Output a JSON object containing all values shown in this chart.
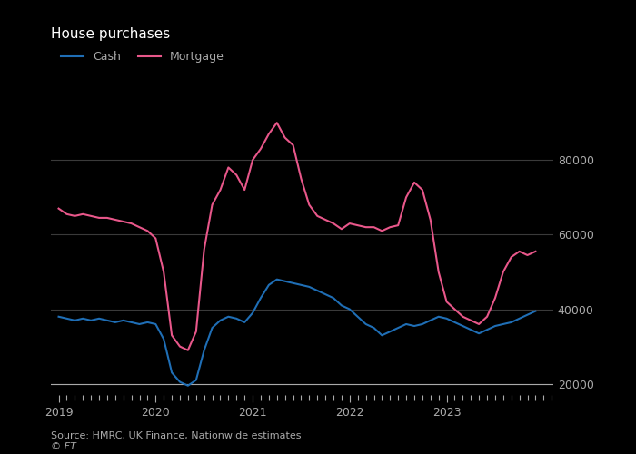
{
  "title": "House purchases",
  "cash_color": "#1f6eb5",
  "mortgage_color": "#e8578a",
  "background_color": "#000000",
  "plot_bg_color": "#000000",
  "text_color": "#aaaaaa",
  "title_color": "#ffffff",
  "grid_color": "#3a3a3a",
  "ylim": [
    17000,
    101000
  ],
  "yticks": [
    20000,
    40000,
    60000,
    80000
  ],
  "xlim": [
    2018.92,
    2024.1
  ],
  "xticks": [
    2019,
    2020,
    2021,
    2022,
    2023
  ],
  "source_text": "Source: HMRC, UK Finance, Nationwide estimates",
  "ft_text": "© FT",
  "cash_data": [
    [
      2019.0,
      38000
    ],
    [
      2019.083,
      37500
    ],
    [
      2019.167,
      37000
    ],
    [
      2019.25,
      37500
    ],
    [
      2019.333,
      37000
    ],
    [
      2019.417,
      37500
    ],
    [
      2019.5,
      37000
    ],
    [
      2019.583,
      36500
    ],
    [
      2019.667,
      37000
    ],
    [
      2019.75,
      36500
    ],
    [
      2019.833,
      36000
    ],
    [
      2019.917,
      36500
    ],
    [
      2020.0,
      36000
    ],
    [
      2020.083,
      32000
    ],
    [
      2020.167,
      23000
    ],
    [
      2020.25,
      20500
    ],
    [
      2020.333,
      19500
    ],
    [
      2020.417,
      21000
    ],
    [
      2020.5,
      29000
    ],
    [
      2020.583,
      35000
    ],
    [
      2020.667,
      37000
    ],
    [
      2020.75,
      38000
    ],
    [
      2020.833,
      37500
    ],
    [
      2020.917,
      36500
    ],
    [
      2021.0,
      39000
    ],
    [
      2021.083,
      43000
    ],
    [
      2021.167,
      46500
    ],
    [
      2021.25,
      48000
    ],
    [
      2021.333,
      47500
    ],
    [
      2021.417,
      47000
    ],
    [
      2021.5,
      46500
    ],
    [
      2021.583,
      46000
    ],
    [
      2021.667,
      45000
    ],
    [
      2021.75,
      44000
    ],
    [
      2021.833,
      43000
    ],
    [
      2021.917,
      41000
    ],
    [
      2022.0,
      40000
    ],
    [
      2022.083,
      38000
    ],
    [
      2022.167,
      36000
    ],
    [
      2022.25,
      35000
    ],
    [
      2022.333,
      33000
    ],
    [
      2022.417,
      34000
    ],
    [
      2022.5,
      35000
    ],
    [
      2022.583,
      36000
    ],
    [
      2022.667,
      35500
    ],
    [
      2022.75,
      36000
    ],
    [
      2022.833,
      37000
    ],
    [
      2022.917,
      38000
    ],
    [
      2023.0,
      37500
    ],
    [
      2023.083,
      36500
    ],
    [
      2023.167,
      35500
    ],
    [
      2023.25,
      34500
    ],
    [
      2023.333,
      33500
    ],
    [
      2023.417,
      34500
    ],
    [
      2023.5,
      35500
    ],
    [
      2023.583,
      36000
    ],
    [
      2023.667,
      36500
    ],
    [
      2023.75,
      37500
    ],
    [
      2023.833,
      38500
    ],
    [
      2023.917,
      39500
    ]
  ],
  "mortgage_data": [
    [
      2019.0,
      67000
    ],
    [
      2019.083,
      65500
    ],
    [
      2019.167,
      65000
    ],
    [
      2019.25,
      65500
    ],
    [
      2019.333,
      65000
    ],
    [
      2019.417,
      64500
    ],
    [
      2019.5,
      64500
    ],
    [
      2019.583,
      64000
    ],
    [
      2019.667,
      63500
    ],
    [
      2019.75,
      63000
    ],
    [
      2019.833,
      62000
    ],
    [
      2019.917,
      61000
    ],
    [
      2020.0,
      59000
    ],
    [
      2020.083,
      50000
    ],
    [
      2020.167,
      33000
    ],
    [
      2020.25,
      30000
    ],
    [
      2020.333,
      29000
    ],
    [
      2020.417,
      34000
    ],
    [
      2020.5,
      56000
    ],
    [
      2020.583,
      68000
    ],
    [
      2020.667,
      72000
    ],
    [
      2020.75,
      78000
    ],
    [
      2020.833,
      76000
    ],
    [
      2020.917,
      72000
    ],
    [
      2021.0,
      80000
    ],
    [
      2021.083,
      83000
    ],
    [
      2021.167,
      87000
    ],
    [
      2021.25,
      90000
    ],
    [
      2021.333,
      86000
    ],
    [
      2021.417,
      84000
    ],
    [
      2021.5,
      75000
    ],
    [
      2021.583,
      68000
    ],
    [
      2021.667,
      65000
    ],
    [
      2021.75,
      64000
    ],
    [
      2021.833,
      63000
    ],
    [
      2021.917,
      61500
    ],
    [
      2022.0,
      63000
    ],
    [
      2022.083,
      62500
    ],
    [
      2022.167,
      62000
    ],
    [
      2022.25,
      62000
    ],
    [
      2022.333,
      61000
    ],
    [
      2022.417,
      62000
    ],
    [
      2022.5,
      62500
    ],
    [
      2022.583,
      70000
    ],
    [
      2022.667,
      74000
    ],
    [
      2022.75,
      72000
    ],
    [
      2022.833,
      64000
    ],
    [
      2022.917,
      50000
    ],
    [
      2023.0,
      42000
    ],
    [
      2023.083,
      40000
    ],
    [
      2023.167,
      38000
    ],
    [
      2023.25,
      37000
    ],
    [
      2023.333,
      36000
    ],
    [
      2023.417,
      38000
    ],
    [
      2023.5,
      43000
    ],
    [
      2023.583,
      50000
    ],
    [
      2023.667,
      54000
    ],
    [
      2023.75,
      55500
    ],
    [
      2023.833,
      54500
    ],
    [
      2023.917,
      55500
    ]
  ]
}
